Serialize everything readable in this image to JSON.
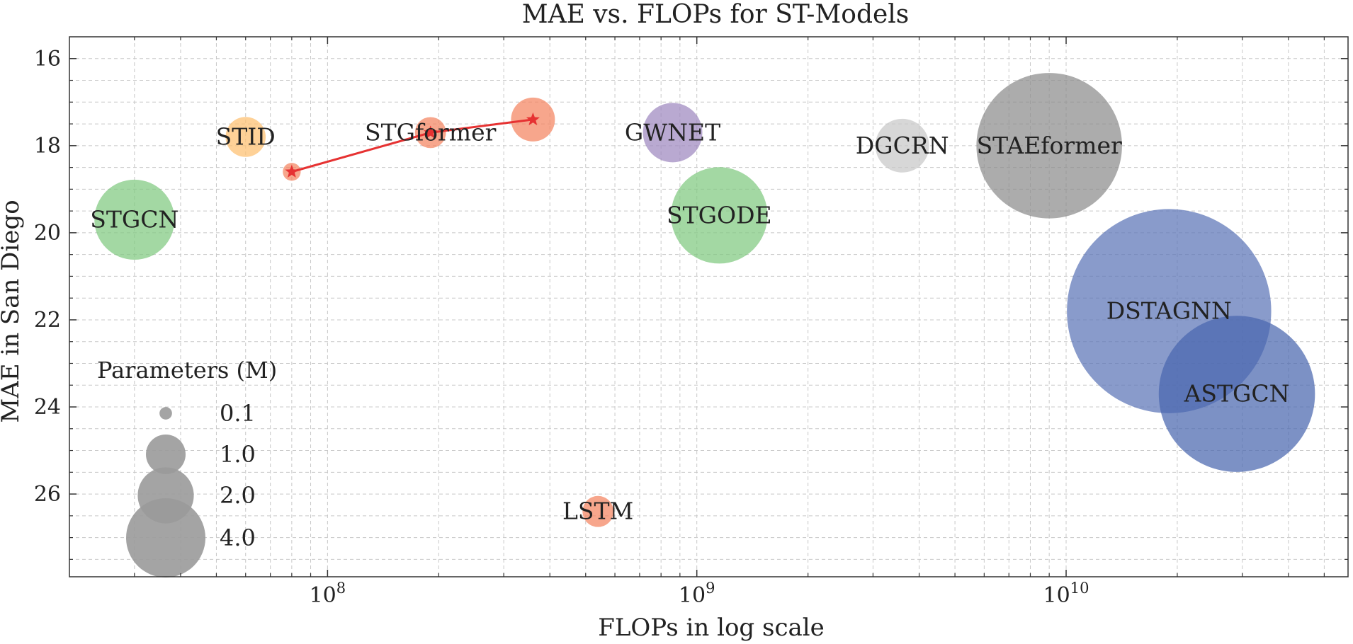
{
  "chart_data": {
    "type": "scatter",
    "title": "MAE vs. FLOPs for ST-Models",
    "xlabel": "FLOPs in log scale",
    "ylabel": "MAE in San Diego",
    "x_scale": "log",
    "xlim": [
      20000000,
      58000000000
    ],
    "ylim": [
      27.9,
      15.5
    ],
    "y_inverted": true,
    "grid": true,
    "x_ticks": [
      {
        "value": 100000000,
        "label": "10^8"
      },
      {
        "value": 1000000000,
        "label": "10^9"
      },
      {
        "value": 10000000000,
        "label": "10^10"
      }
    ],
    "y_ticks": [
      16,
      18,
      20,
      22,
      24,
      26
    ],
    "points": [
      {
        "label": "STGCN",
        "flops": 30000000,
        "mae": 19.7,
        "params_m": 2.0,
        "color": "#7fc97f"
      },
      {
        "label": "STID",
        "flops": 60000000,
        "mae": 17.8,
        "params_m": 0.5,
        "color": "#fdbf6f"
      },
      {
        "label": "",
        "flops": 80000000,
        "mae": 18.6,
        "params_m": 0.1,
        "color": "#f4845f"
      },
      {
        "label": "STGformer",
        "flops": 190000000,
        "mae": 17.7,
        "params_m": 0.3,
        "color": "#f4845f"
      },
      {
        "label": "",
        "flops": 360000000,
        "mae": 17.4,
        "params_m": 0.6,
        "color": "#f4845f"
      },
      {
        "label": "GWNET",
        "flops": 860000000,
        "mae": 17.7,
        "params_m": 1.1,
        "color": "#9e88bf"
      },
      {
        "label": "STGODE",
        "flops": 1150000000,
        "mae": 19.6,
        "params_m": 2.9,
        "color": "#7fc97f"
      },
      {
        "label": "LSTM",
        "flops": 540000000,
        "mae": 26.4,
        "params_m": 0.3,
        "color": "#f4845f"
      },
      {
        "label": "DGCRN",
        "flops": 3600000000,
        "mae": 18.0,
        "params_m": 0.9,
        "color": "#c8c8c8"
      },
      {
        "label": "STAEformer",
        "flops": 9000000000,
        "mae": 18.0,
        "params_m": 6.6,
        "color": "#8c8c8c"
      },
      {
        "label": "DSTAGNN",
        "flops": 19000000000,
        "mae": 21.8,
        "params_m": 13.0,
        "color": "#5b74b7"
      },
      {
        "label": "ASTGCN",
        "flops": 29000000000,
        "mae": 23.7,
        "params_m": 7.6,
        "color": "#4a66ae"
      }
    ],
    "line_series": {
      "color": "#e63232",
      "marker": "star",
      "points": [
        {
          "flops": 80000000,
          "mae": 18.6
        },
        {
          "flops": 190000000,
          "mae": 17.7
        },
        {
          "flops": 360000000,
          "mae": 17.4
        }
      ]
    },
    "legend": {
      "title": "Parameters (M)",
      "placement": "lower-left",
      "color": "#9a9a9a",
      "entries": [
        {
          "label": "0.1",
          "value": 0.1
        },
        {
          "label": "1.0",
          "value": 1.0
        },
        {
          "label": "2.0",
          "value": 2.0
        },
        {
          "label": "4.0",
          "value": 4.0
        }
      ]
    }
  }
}
